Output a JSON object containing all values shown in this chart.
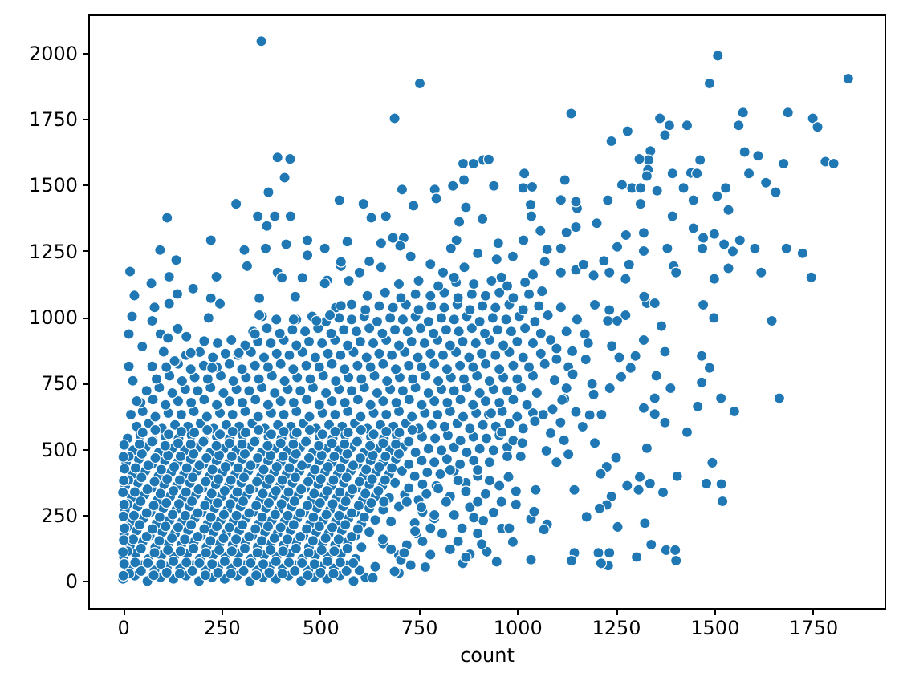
{
  "chart_data": {
    "type": "scatter",
    "xlabel": "count",
    "xlim": [
      -88,
      1932
    ],
    "ylim": [
      -102,
      2145
    ],
    "xticks": [
      0,
      250,
      500,
      750,
      1000,
      1250,
      1500,
      1750
    ],
    "yticks": [
      0,
      250,
      500,
      750,
      1000,
      1250,
      1500,
      1750,
      2000
    ],
    "grid": false,
    "marker": "circle",
    "series": [
      {
        "color": "#1f77b4",
        "x": [
          0,
          30,
          62,
          95,
          128,
          160,
          193,
          226,
          258,
          290,
          322,
          355,
          388,
          420,
          452,
          485,
          518,
          550,
          585,
          615,
          15,
          48,
          80,
          112,
          145,
          178,
          210,
          242,
          275,
          308,
          340,
          372,
          405,
          438,
          470,
          503,
          535,
          568,
          600,
          640,
          2,
          32,
          65,
          98,
          130,
          163,
          195,
          228,
          260,
          293,
          325,
          358,
          390,
          423,
          455,
          488,
          520,
          553,
          590,
          700,
          18,
          50,
          82,
          115,
          148,
          180,
          212,
          245,
          278,
          310,
          342,
          375,
          408,
          440,
          472,
          505,
          538,
          570,
          605,
          660,
          720,
          3,
          35,
          68,
          100,
          132,
          165,
          198,
          230,
          262,
          295,
          328,
          360,
          392,
          425,
          458,
          490,
          522,
          555,
          590,
          625,
          745,
          20,
          52,
          85,
          118,
          150,
          182,
          215,
          248,
          280,
          312,
          345,
          378,
          410,
          442,
          475,
          508,
          540,
          572,
          605,
          640,
          680,
          790,
          5,
          37,
          70,
          102,
          135,
          168,
          200,
          232,
          265,
          298,
          330,
          362,
          395,
          428,
          460,
          492,
          525,
          558,
          590,
          625,
          660,
          700,
          760,
          22,
          55,
          88,
          120,
          152,
          185,
          218,
          250,
          282,
          315,
          348,
          380,
          412,
          445,
          478,
          510,
          542,
          575,
          608,
          640,
          675,
          715,
          750,
          830,
          6,
          38,
          72,
          104,
          137,
          170,
          202,
          235,
          268,
          300,
          332,
          365,
          398,
          430,
          462,
          495,
          528,
          560,
          592,
          625,
          658,
          690,
          725,
          760,
          795,
          870,
          24,
          57,
          90,
          122,
          155,
          188,
          220,
          252,
          285,
          318,
          350,
          383,
          415,
          448,
          480,
          512,
          545,
          578,
          610,
          642,
          675,
          708,
          740,
          772,
          805,
          840,
          900,
          8,
          40,
          73,
          106,
          139,
          172,
          204,
          237,
          270,
          302,
          335,
          368,
          400,
          432,
          465,
          498,
          530,
          562,
          595,
          628,
          660,
          692,
          725,
          758,
          790,
          822,
          855,
          890,
          930,
          26,
          58,
          91,
          124,
          157,
          190,
          222,
          255,
          288,
          320,
          352,
          385,
          418,
          450,
          482,
          515,
          548,
          580,
          612,
          645,
          678,
          710,
          742,
          775,
          808,
          840,
          872,
          905,
          940,
          975,
          12,
          44,
          76,
          108,
          141,
          174,
          206,
          238,
          271,
          304,
          336,
          369,
          402,
          434,
          466,
          499,
          532,
          564,
          596,
          629,
          662,
          694,
          726,
          759,
          792,
          824,
          856,
          889,
          922,
          955,
          990,
          35,
          66,
          99,
          132,
          165,
          197,
          230,
          262,
          295,
          328,
          360,
          393,
          426,
          458,
          490,
          523,
          556,
          588,
          620,
          653,
          686,
          718,
          750,
          783,
          816,
          848,
          880,
          913,
          946,
          980,
          1015,
          20,
          50,
          82,
          115,
          148,
          180,
          213,
          246,
          278,
          310,
          343,
          376,
          408,
          440,
          473,
          506,
          538,
          570,
          603,
          636,
          668,
          700,
          733,
          766,
          798,
          830,
          863,
          896,
          928,
          962,
          1000,
          1040,
          45,
          76,
          108,
          140,
          173,
          206,
          238,
          270,
          303,
          336,
          368,
          400,
          433,
          466,
          498,
          530,
          563,
          596,
          628,
          660,
          693,
          726,
          758,
          790,
          823,
          856,
          888,
          920,
          955,
          990,
          1025,
          60,
          92,
          125,
          158,
          190,
          222,
          255,
          288,
          320,
          352,
          385,
          418,
          450,
          482,
          515,
          548,
          580,
          612,
          645,
          678,
          710,
          742,
          775,
          808,
          840,
          872,
          905,
          940,
          975,
          1010,
          1050,
          85,
          118,
          150,
          182,
          215,
          248,
          280,
          312,
          345,
          378,
          410,
          442,
          475,
          508,
          540,
          572,
          605,
          638,
          670,
          702,
          735,
          768,
          800,
          832,
          865,
          898,
          930,
          965,
          1000,
          1040,
          110,
          140,
          172,
          205,
          238,
          270,
          302,
          335,
          368,
          400,
          432,
          465,
          498,
          530,
          562,
          595,
          628,
          660,
          692,
          725,
          758,
          790,
          822,
          855,
          888,
          920,
          955,
          990,
          1030,
          1070,
          160,
          195,
          228,
          260,
          292,
          325,
          358,
          390,
          422,
          455,
          488,
          520,
          552,
          585,
          618,
          650,
          682,
          715,
          748,
          780,
          812,
          845,
          878,
          910,
          945,
          980,
          1015,
          1060,
          240,
          275,
          310,
          342,
          375,
          408,
          440,
          472,
          505,
          538,
          570,
          602,
          635,
          668,
          700,
          732,
          765,
          798,
          830,
          862,
          895,
          930,
          965,
          1000,
          1040,
          1085,
          330,
          365,
          398,
          430,
          462,
          495,
          528,
          560,
          592,
          625,
          658,
          690,
          722,
          755,
          788,
          820,
          852,
          885,
          918,
          950,
          985,
          1020,
          1060,
          440,
          480,
          515,
          548,
          580,
          612,
          645,
          678,
          710,
          742,
          775,
          808,
          840,
          872,
          905,
          938,
          972,
          1005,
          1045,
          540,
          580,
          615,
          650,
          685,
          718,
          750,
          782,
          815,
          848,
          880,
          912,
          945,
          980,
          1015,
          1055,
          620,
          665,
          705,
          742,
          780,
          815,
          850,
          885,
          920,
          955,
          990,
          1030,
          700,
          750,
          800,
          845,
          890,
          935,
          975,
          1020,
          351,
          753,
          689,
          392,
          424,
          410,
          369,
          708,
          737,
          287,
          342,
          385,
          425,
          365,
          112,
          610,
          630,
          667,
          549,
          685,
          712,
          791,
          795,
          223,
          94,
          308,
          468,
          512,
          569,
          414,
          18,
          117,
          72,
          178,
          237,
          315,
          392,
          455,
          518,
          553,
          29,
          138,
          117,
          223,
          246,
          346,
          437,
          23,
          74,
          217,
          353,
          15,
          135,
          80,
          139,
          95,
          49,
          114,
          161,
          206,
          172,
          103,
          15,
          74,
          131,
          226,
          25,
          35,
          362,
          468,
          553,
          403,
          389,
          433,
          346,
          294,
          335,
          491,
          525,
          553,
          1509,
          1488,
          1840,
          1137,
          1362,
          1386,
          1431,
          1375,
          1280,
          1239,
          1573,
          1562,
          1687,
          1750,
          1762,
          1577,
          1611,
          1676,
          1782,
          1803,
          1588,
          1631,
          1656,
          1464,
          1441,
          1456,
          1394,
          1338,
          1333,
          1310,
          1332,
          1329,
          1422,
          1355,
          1291,
          1313,
          1266,
          1230,
          1313,
          1447,
          1507,
          1529,
          1536,
          1394,
          1447,
          1472,
          1500,
          1565,
          1525,
          1547,
          1470,
          1603,
          1683,
          1724,
          1746,
          1619,
          1536,
          1500,
          1472,
          1499,
          1646,
          1381,
          1397,
          1403,
          1321,
          1321,
          1276,
          1284,
          1275,
          1254,
          1329,
          1349,
          1366,
          1321,
          1230,
          1202,
          1220,
          1194,
          1152,
          1149,
          1121,
          1018,
          1015,
          1038,
          941,
          914,
          928,
          863,
          889,
          865,
          837,
          1034,
          1111,
          1149,
          912,
          870,
          853,
          952,
          1059,
          1076,
          1111,
          1149,
          1168,
          1197,
          655,
          703,
          846,
          832,
          1016,
          1036,
          1125,
          600,
          655,
          730,
          812,
          866,
          948,
          989,
          1070,
          1111,
          512,
          573,
          625,
          780,
          900,
          1040,
          960,
          840,
          1152,
          1078,
          1111,
          1234,
          1275,
          1254,
          1172,
          1125,
          1322,
          1234,
          1063,
          1180,
          1140,
          1100,
          1240,
          1100,
          1130,
          1095,
          1120,
          1090,
          1110,
          1100,
          1130,
          1085,
          1665,
          1468,
          1488,
          1468,
          1517,
          1551,
          1458,
          1431,
          1375,
          1389,
          1349,
          1349,
          1375,
          1321,
          1353,
          1300,
          1288,
          1264,
          1259,
          1235,
          1190,
          1194,
          1214,
          1174,
          1141,
          1125,
          1114,
          1149,
          1184,
          1166,
          1119,
          1197,
          1066,
          1045,
          1074,
          1329,
          1406,
          1495,
          1480,
          1518,
          1521,
          1370,
          1337,
          1308,
          1311,
          1279,
          1251,
          1227,
          1212,
          1239,
          1227,
          1209,
          1255,
          1324,
          1340,
          1378,
          1401,
          1403,
          1303,
          1234,
          1231,
          1206,
          1213,
          1145,
          1138,
          1035,
          1176,
          1145,
          1047,
          1076,
          1068,
          1035,
          1043,
          997,
          978,
          997,
          948,
          923,
          880,
          862,
          989,
          961,
          914,
          880,
          955,
          1009,
          1013,
          975,
          961,
          934,
          830,
          850,
          870,
          900,
          840,
          860,
          820,
          900,
          930,
          920,
          850,
          900,
          940,
          960,
          980,
          890,
          830,
          870,
          910,
          800,
          790,
          810,
          760,
          780,
          730,
          700,
          680,
          740,
          720,
          770,
          689,
          634,
          767,
          705,
          713,
          659,
          741,
          780,
          662,
          757,
          16,
          46,
          78,
          111,
          144,
          176,
          209,
          241,
          274,
          306,
          338,
          371,
          404,
          436,
          469,
          501,
          534,
          567,
          31,
          63,
          96,
          128,
          161,
          194,
          226,
          258,
          291,
          324,
          356,
          388,
          421,
          454,
          486,
          519,
          551,
          584,
          12,
          46,
          80,
          114,
          146,
          179,
          211,
          244,
          276,
          309,
          341,
          374,
          406,
          439,
          471,
          504,
          536,
          569,
          26,
          60,
          92,
          124,
          157,
          190,
          222,
          255,
          287,
          320,
          352,
          384,
          417,
          450,
          482,
          514,
          547,
          580,
          10,
          42,
          75,
          108,
          140,
          173,
          206,
          238,
          270,
          303,
          336,
          368,
          400,
          433,
          466,
          498,
          531,
          564,
          596,
          28,
          60,
          93,
          126,
          158,
          190,
          223,
          256,
          288,
          320,
          353,
          386,
          418,
          450,
          483,
          516,
          548,
          580,
          612,
          12,
          45,
          78,
          110,
          142,
          175,
          208,
          240,
          272,
          305,
          338,
          370,
          402,
          435,
          468,
          500,
          532,
          565,
          598,
          630,
          30,
          62,
          95,
          128,
          160,
          192,
          225,
          258,
          290,
          322,
          355,
          388,
          420,
          452,
          485,
          518,
          550,
          582,
          615,
          648,
          14,
          47,
          80,
          112,
          144,
          177,
          210,
          242,
          274,
          307,
          340,
          372,
          404,
          437,
          470,
          502,
          534,
          567,
          600,
          632,
          665,
          32,
          64,
          97,
          130,
          162,
          194,
          227,
          260,
          292,
          324,
          357,
          390,
          422,
          454,
          487,
          520,
          552,
          584,
          617,
          650,
          682,
          15,
          48,
          82,
          114,
          146,
          179,
          212,
          244,
          276,
          309,
          342,
          374,
          406,
          439,
          472,
          504,
          536,
          569,
          602,
          634,
          666,
          700,
          42,
          74,
          107,
          140,
          172,
          204,
          237,
          270,
          302,
          334,
          367,
          400,
          432,
          464,
          497,
          530,
          562,
          594,
          627,
          660,
          692,
          725,
          50,
          82,
          116,
          148,
          181,
          214,
          246,
          278,
          311,
          344,
          376,
          408,
          441,
          474,
          506,
          538,
          571,
          604,
          636,
          668,
          701,
          734,
          1,
          3,
          0,
          2,
          4,
          1,
          3,
          0,
          2,
          4,
          1,
          3
        ],
        "values": [
          8,
          20,
          0,
          14,
          8,
          20,
          0,
          14,
          8,
          20,
          0,
          14,
          8,
          20,
          0,
          14,
          8,
          20,
          0,
          14,
          48,
          60,
          40,
          54,
          48,
          60,
          40,
          54,
          48,
          60,
          40,
          54,
          48,
          60,
          40,
          54,
          48,
          60,
          40,
          54,
          92,
          104,
          84,
          98,
          92,
          104,
          84,
          98,
          92,
          104,
          84,
          98,
          92,
          104,
          84,
          98,
          92,
          104,
          84,
          98,
          136,
          148,
          128,
          142,
          136,
          148,
          128,
          142,
          136,
          148,
          128,
          142,
          136,
          148,
          128,
          142,
          136,
          148,
          128,
          142,
          136,
          180,
          192,
          172,
          186,
          180,
          192,
          172,
          186,
          180,
          192,
          172,
          186,
          180,
          192,
          172,
          186,
          180,
          192,
          172,
          186,
          180,
          225,
          237,
          217,
          231,
          225,
          237,
          217,
          231,
          225,
          237,
          217,
          231,
          225,
          237,
          217,
          231,
          225,
          237,
          217,
          231,
          225,
          237,
          270,
          282,
          262,
          276,
          270,
          282,
          262,
          276,
          270,
          282,
          262,
          276,
          270,
          282,
          262,
          276,
          270,
          282,
          262,
          276,
          270,
          282,
          262,
          315,
          327,
          307,
          321,
          315,
          327,
          307,
          321,
          315,
          327,
          307,
          321,
          315,
          327,
          307,
          321,
          315,
          327,
          307,
          321,
          315,
          327,
          307,
          321,
          360,
          372,
          352,
          366,
          360,
          372,
          352,
          366,
          360,
          372,
          352,
          366,
          360,
          372,
          352,
          366,
          360,
          372,
          352,
          366,
          360,
          372,
          352,
          366,
          360,
          372,
          405,
          417,
          397,
          411,
          405,
          417,
          397,
          411,
          405,
          417,
          397,
          411,
          405,
          417,
          397,
          411,
          405,
          417,
          397,
          411,
          405,
          417,
          397,
          411,
          405,
          417,
          397,
          450,
          462,
          442,
          456,
          450,
          462,
          442,
          456,
          450,
          462,
          442,
          456,
          450,
          462,
          442,
          456,
          450,
          462,
          442,
          456,
          450,
          462,
          442,
          456,
          450,
          462,
          442,
          456,
          450,
          495,
          507,
          487,
          501,
          495,
          507,
          487,
          501,
          495,
          507,
          487,
          501,
          495,
          507,
          487,
          501,
          495,
          507,
          487,
          501,
          495,
          507,
          487,
          501,
          495,
          507,
          487,
          501,
          495,
          507,
          540,
          552,
          532,
          546,
          540,
          552,
          532,
          546,
          540,
          552,
          532,
          546,
          540,
          552,
          532,
          546,
          540,
          552,
          532,
          546,
          540,
          552,
          532,
          546,
          540,
          552,
          532,
          546,
          540,
          552,
          532,
          585,
          597,
          577,
          591,
          585,
          597,
          577,
          591,
          585,
          597,
          577,
          591,
          585,
          597,
          577,
          591,
          585,
          597,
          577,
          591,
          585,
          597,
          577,
          591,
          585,
          597,
          577,
          591,
          585,
          597,
          577,
          630,
          642,
          622,
          636,
          630,
          642,
          622,
          636,
          630,
          642,
          622,
          636,
          630,
          642,
          622,
          636,
          630,
          642,
          622,
          636,
          630,
          642,
          622,
          636,
          630,
          642,
          622,
          636,
          630,
          642,
          622,
          636,
          675,
          687,
          667,
          681,
          675,
          687,
          667,
          681,
          675,
          687,
          667,
          681,
          675,
          687,
          667,
          681,
          675,
          687,
          667,
          681,
          675,
          687,
          667,
          681,
          675,
          687,
          667,
          681,
          675,
          687,
          667,
          720,
          732,
          712,
          726,
          720,
          732,
          712,
          726,
          720,
          732,
          712,
          726,
          720,
          732,
          712,
          726,
          720,
          732,
          712,
          726,
          720,
          732,
          712,
          726,
          720,
          732,
          712,
          726,
          720,
          732,
          712,
          765,
          777,
          757,
          771,
          765,
          777,
          757,
          771,
          765,
          777,
          757,
          771,
          765,
          777,
          757,
          771,
          765,
          777,
          757,
          771,
          765,
          777,
          757,
          771,
          765,
          777,
          757,
          771,
          765,
          777,
          810,
          822,
          802,
          816,
          810,
          822,
          802,
          816,
          810,
          822,
          802,
          816,
          810,
          822,
          802,
          816,
          810,
          822,
          802,
          816,
          810,
          822,
          802,
          816,
          810,
          822,
          802,
          816,
          810,
          822,
          855,
          867,
          847,
          861,
          855,
          867,
          847,
          861,
          855,
          867,
          847,
          861,
          855,
          867,
          847,
          861,
          855,
          867,
          847,
          861,
          855,
          867,
          847,
          861,
          855,
          867,
          847,
          861,
          900,
          912,
          892,
          906,
          900,
          912,
          892,
          906,
          900,
          912,
          892,
          906,
          900,
          912,
          892,
          906,
          900,
          912,
          892,
          906,
          900,
          912,
          892,
          906,
          900,
          912,
          945,
          957,
          937,
          951,
          945,
          957,
          937,
          951,
          945,
          957,
          937,
          951,
          945,
          957,
          937,
          951,
          945,
          957,
          937,
          951,
          945,
          957,
          937,
          990,
          1002,
          982,
          996,
          990,
          1002,
          982,
          996,
          990,
          1002,
          982,
          996,
          990,
          1002,
          982,
          996,
          990,
          1002,
          982,
          1035,
          1047,
          1027,
          1041,
          1035,
          1047,
          1027,
          1041,
          1035,
          1047,
          1027,
          1041,
          1035,
          1047,
          1027,
          1041,
          1080,
          1092,
          1072,
          1086,
          1080,
          1092,
          1072,
          1086,
          1080,
          1092,
          1072,
          1086,
          1125,
          1137,
          1117,
          1131,
          1125,
          1137,
          1117,
          1131,
          2044,
          1884,
          1752,
          1604,
          1598,
          1527,
          1472,
          1482,
          1421,
          1428,
          1381,
          1381,
          1381,
          1344,
          1375,
          1428,
          1375,
          1381,
          1442,
          1299,
          1299,
          1482,
          1448,
          1290,
          1253,
          1253,
          1290,
          1259,
          1285,
          1275,
          1172,
          1152,
          1127,
          1107,
          1152,
          1192,
          1168,
          1148,
          1138,
          1192,
          1081,
          1087,
          1050,
          1071,
          1050,
          1071,
          1077,
          1002,
          985,
          996,
          1002,
          935,
          1215,
          1036,
          955,
          935,
          888,
          920,
          925,
          908,
          864,
          868,
          813,
          813,
          833,
          807,
          758,
          681,
          1259,
          1233,
          1208,
          1148,
          990,
          990,
          1006,
          864,
          935,
          985,
          1006,
          1042,
          1989,
          1884,
          1902,
          1770,
          1752,
          1725,
          1725,
          1689,
          1703,
          1665,
          1774,
          1725,
          1774,
          1752,
          1719,
          1624,
          1610,
          1580,
          1588,
          1580,
          1543,
          1508,
          1472,
          1594,
          1545,
          1543,
          1543,
          1628,
          1594,
          1598,
          1557,
          1533,
          1488,
          1478,
          1488,
          1488,
          1500,
          1442,
          1428,
          1442,
          1457,
          1488,
          1405,
          1381,
          1336,
          1299,
          1314,
          1290,
          1275,
          1248,
          1259,
          1259,
          1259,
          1241,
          1150,
          1168,
          1184,
          1144,
          1046,
          996,
          985,
          1259,
          1192,
          1168,
          1249,
          1318,
          1310,
          1198,
          1144,
          1265,
          1052,
          1052,
          965,
          912,
          985,
          1355,
          1212,
          1157,
          1411,
          1436,
          1518,
          1543,
          1488,
          1492,
          1496,
          1594,
          1596,
          1580,
          1580,
          1518,
          1496,
          1425,
          1443,
          1340,
          1371,
          1415,
          1360,
          1279,
          1326,
          1255,
          1259,
          1178,
          1198,
          1046,
          1279,
          1269,
          1290,
          1259,
          1290,
          1381,
          1320,
          1168,
          1188,
          1229,
          1168,
          1188,
          1218,
          1229,
          1209,
          1168,
          1127,
          1137,
          1210,
          1200,
          1240,
          1160,
          1150,
          1150,
          990,
          1006,
          1036,
          1026,
          1006,
          985,
          935,
          945,
          1077,
          1168,
          1097,
          900,
          870,
          880,
          890,
          840,
          810,
          760,
          690,
          650,
          600,
          450,
          480,
          560,
          692,
          852,
          807,
          752,
          692,
          642,
          661,
          564,
          868,
          730,
          692,
          632,
          600,
          655,
          777,
          852,
          807,
          773,
          847,
          730,
          746,
          706,
          630,
          839,
          783,
          730,
          685,
          640,
          628,
          584,
          533,
          523,
          630,
          605,
          493,
          503,
          397,
          448,
          369,
          367,
          302,
          335,
          369,
          345,
          394,
          361,
          467,
          432,
          406,
          320,
          288,
          275,
          205,
          219,
          138,
          117,
          117,
          77,
          91,
          107,
          58,
          107,
          67,
          107,
          77,
          81,
          243,
          345,
          345,
          215,
          195,
          235,
          263,
          290,
          394,
          340,
          73,
          111,
          101,
          67,
          148,
          199,
          229,
          280,
          361,
          472,
          523,
          472,
          564,
          635,
          420,
          380,
          340,
          300,
          250,
          200,
          300,
          420,
          380,
          330,
          150,
          180,
          260,
          300,
          200,
          240,
          120,
          90,
          140,
          350,
          250,
          180,
          150,
          100,
          60,
          30,
          120,
          220,
          300,
          330,
          36,
          12,
          53,
          80,
          107,
          158,
          189,
          200,
          300,
          280,
          28,
          38,
          22,
          32,
          28,
          38,
          22,
          32,
          28,
          38,
          22,
          32,
          28,
          38,
          22,
          32,
          28,
          38,
          70,
          68,
          64,
          74,
          70,
          68,
          64,
          74,
          70,
          68,
          64,
          74,
          70,
          68,
          64,
          74,
          70,
          68,
          113,
          123,
          107,
          117,
          113,
          123,
          107,
          117,
          113,
          123,
          107,
          117,
          113,
          123,
          107,
          117,
          113,
          123,
          158,
          168,
          152,
          162,
          158,
          168,
          152,
          162,
          158,
          168,
          152,
          162,
          158,
          168,
          152,
          162,
          158,
          168,
          203,
          213,
          197,
          207,
          203,
          213,
          197,
          207,
          203,
          213,
          197,
          207,
          203,
          213,
          197,
          207,
          203,
          213,
          197,
          248,
          258,
          242,
          252,
          248,
          258,
          242,
          252,
          248,
          258,
          242,
          252,
          248,
          258,
          242,
          252,
          248,
          258,
          242,
          292,
          302,
          286,
          296,
          292,
          302,
          286,
          296,
          292,
          302,
          286,
          296,
          292,
          302,
          286,
          296,
          292,
          302,
          286,
          296,
          337,
          347,
          331,
          341,
          337,
          347,
          331,
          341,
          337,
          347,
          331,
          341,
          337,
          347,
          331,
          341,
          337,
          347,
          331,
          341,
          382,
          392,
          376,
          386,
          382,
          392,
          376,
          386,
          382,
          392,
          376,
          386,
          382,
          392,
          376,
          386,
          382,
          392,
          376,
          386,
          382,
          428,
          438,
          422,
          432,
          428,
          438,
          422,
          432,
          428,
          438,
          422,
          432,
          428,
          438,
          422,
          432,
          428,
          438,
          422,
          432,
          428,
          472,
          482,
          466,
          476,
          472,
          482,
          466,
          476,
          472,
          482,
          466,
          476,
          472,
          482,
          466,
          476,
          472,
          482,
          466,
          476,
          472,
          482,
          518,
          528,
          512,
          522,
          518,
          528,
          512,
          522,
          518,
          528,
          512,
          522,
          518,
          528,
          512,
          522,
          518,
          528,
          512,
          522,
          518,
          528,
          562,
          572,
          556,
          566,
          562,
          572,
          556,
          566,
          562,
          572,
          556,
          566,
          562,
          572,
          556,
          566,
          562,
          572,
          556,
          566,
          562,
          572,
          20,
          65,
          110,
          155,
          200,
          245,
          290,
          335,
          380,
          425,
          470,
          515
        ]
      }
    ]
  }
}
